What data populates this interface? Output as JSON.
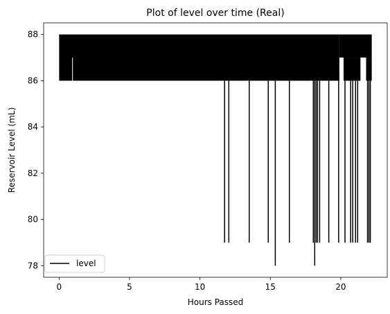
{
  "chart_data": {
    "type": "line",
    "title": "Plot of level over time (Real)",
    "xlabel": "Hours Passed",
    "ylabel": "Reservoir Level (mL)",
    "xlim": [
      -1.1,
      23.3
    ],
    "ylim": [
      77.5,
      88.5
    ],
    "xticks": [
      0,
      5,
      10,
      15,
      20
    ],
    "yticks": [
      78,
      80,
      82,
      84,
      86,
      88
    ],
    "grid": false,
    "legend": {
      "placement": "lower-left"
    },
    "series": [
      {
        "name": "level",
        "color": "#000000",
        "band_segments": [
          {
            "x_start": 0.0,
            "x_end": 19.9,
            "y_low": 86,
            "y_high": 88
          },
          {
            "x_start": 19.9,
            "x_end": 22.2,
            "y_low": 87,
            "y_high": 88
          },
          {
            "x_start": 20.2,
            "x_end": 21.4,
            "y_low": 86,
            "y_high": 87
          },
          {
            "x_start": 21.8,
            "x_end": 22.2,
            "y_low": 86,
            "y_high": 87
          }
        ],
        "drops": [
          {
            "x": 11.75,
            "y": 79
          },
          {
            "x": 12.05,
            "y": 79
          },
          {
            "x": 13.5,
            "y": 79
          },
          {
            "x": 14.85,
            "y": 79
          },
          {
            "x": 15.35,
            "y": 78
          },
          {
            "x": 16.35,
            "y": 79
          },
          {
            "x": 18.05,
            "y": 79
          },
          {
            "x": 18.15,
            "y": 78
          },
          {
            "x": 18.25,
            "y": 79
          },
          {
            "x": 18.35,
            "y": 79
          },
          {
            "x": 18.5,
            "y": 79
          },
          {
            "x": 19.15,
            "y": 79
          },
          {
            "x": 19.85,
            "y": 79
          },
          {
            "x": 20.3,
            "y": 79
          },
          {
            "x": 20.7,
            "y": 79
          },
          {
            "x": 20.85,
            "y": 79
          },
          {
            "x": 21.05,
            "y": 79
          },
          {
            "x": 21.2,
            "y": 79
          },
          {
            "x": 21.9,
            "y": 79
          },
          {
            "x": 22.0,
            "y": 79
          },
          {
            "x": 22.1,
            "y": 79
          }
        ]
      }
    ]
  }
}
